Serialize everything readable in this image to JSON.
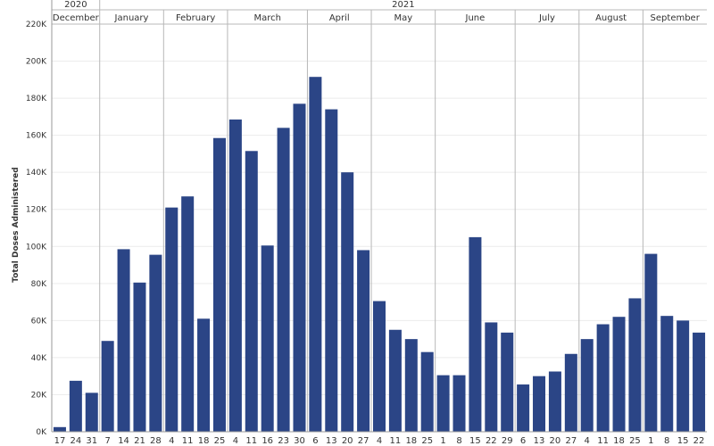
{
  "chart_data": {
    "type": "bar",
    "ylabel": "Total Doses Administered",
    "ylim": [
      0,
      220000
    ],
    "yticks": [
      0,
      20000,
      40000,
      60000,
      80000,
      100000,
      120000,
      140000,
      160000,
      180000,
      200000,
      220000
    ],
    "ytick_labels": [
      "0K",
      "20K",
      "40K",
      "60K",
      "80K",
      "100K",
      "120K",
      "140K",
      "160K",
      "180K",
      "200K",
      "220K"
    ],
    "grid": true,
    "bar_color": "#2b4586",
    "years": [
      {
        "label": "2020",
        "months": 1
      },
      {
        "label": "2021",
        "months": 9
      }
    ],
    "months": [
      {
        "label": "December",
        "days": [
          "17",
          "24",
          "31"
        ],
        "values": [
          2500,
          27500,
          21000
        ]
      },
      {
        "label": "January",
        "days": [
          "7",
          "14",
          "21",
          "28"
        ],
        "values": [
          49000,
          98500,
          80500,
          95500
        ]
      },
      {
        "label": "February",
        "days": [
          "4",
          "11",
          "18",
          "25"
        ],
        "values": [
          121000,
          127000,
          61000,
          158500
        ]
      },
      {
        "label": "March",
        "days": [
          "4",
          "11",
          "16",
          "23",
          "30"
        ],
        "values": [
          168500,
          151500,
          100500,
          164000,
          177000
        ]
      },
      {
        "label": "April",
        "days": [
          "6",
          "13",
          "20",
          "27"
        ],
        "values": [
          191500,
          174000,
          140000,
          98000
        ]
      },
      {
        "label": "May",
        "days": [
          "4",
          "11",
          "18",
          "25"
        ],
        "values": [
          70500,
          55000,
          50000,
          43000
        ]
      },
      {
        "label": "June",
        "days": [
          "1",
          "8",
          "15",
          "22",
          "29"
        ],
        "values": [
          30500,
          30500,
          105000,
          59000,
          53500
        ]
      },
      {
        "label": "July",
        "days": [
          "6",
          "13",
          "20",
          "27"
        ],
        "values": [
          25500,
          30000,
          32500,
          42000
        ]
      },
      {
        "label": "August",
        "days": [
          "4",
          "11",
          "18",
          "25"
        ],
        "values": [
          50000,
          58000,
          62000,
          72000
        ]
      },
      {
        "label": "September",
        "days": [
          "1",
          "8",
          "15",
          "22"
        ],
        "values": [
          96000,
          62500,
          60000,
          53500
        ]
      }
    ]
  }
}
